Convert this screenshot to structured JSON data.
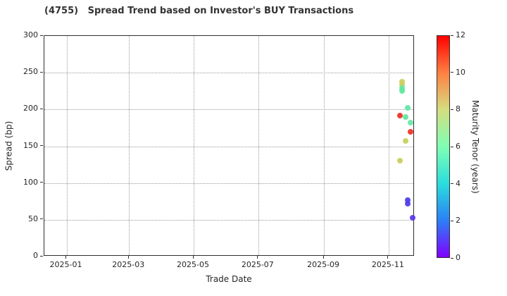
{
  "title": "(4755)   Spread Trend based on Investor's BUY Transactions",
  "chart_data": {
    "type": "scatter",
    "title": "(4755)   Spread Trend based on Investor's BUY Transactions",
    "xlabel": "Trade Date",
    "ylabel": "Spread (bp)",
    "ylim": [
      0,
      300
    ],
    "y_ticks": [
      0,
      50,
      100,
      150,
      200,
      250,
      300
    ],
    "x_ticks": [
      "2025-01",
      "2025-03",
      "2025-05",
      "2025-07",
      "2025-09",
      "2025-11"
    ],
    "x_range": [
      "2024-12-11",
      "2025-11-27"
    ],
    "grid": "dotted",
    "legend_position": "none",
    "colorbar": {
      "label": "Maturity Tenor (years)",
      "min": 0,
      "max": 12,
      "ticks": [
        0,
        2,
        4,
        6,
        8,
        10,
        12
      ],
      "colormap": "rainbow",
      "stops": [
        "#8000ff",
        "#2b80f6",
        "#2bdddd",
        "#80ffb4",
        "#d5dd80",
        "#ff8042",
        "#ff0000"
      ]
    },
    "points": [
      {
        "date": "2025-11-14",
        "spread_bp": 238,
        "tenor_years": 7.5,
        "color": "#cbce60"
      },
      {
        "date": "2025-11-14",
        "spread_bp": 234,
        "tenor_years": 7.5,
        "color": "#cbce60"
      },
      {
        "date": "2025-11-14",
        "spread_bp": 229,
        "tenor_years": 5.0,
        "color": "#5fe79e"
      },
      {
        "date": "2025-11-14",
        "spread_bp": 225,
        "tenor_years": 5.0,
        "color": "#5fe79e"
      },
      {
        "date": "2025-11-19",
        "spread_bp": 202,
        "tenor_years": 5.0,
        "color": "#5be8a6"
      },
      {
        "date": "2025-11-12",
        "spread_bp": 192,
        "tenor_years": 12.0,
        "color": "#ee3123"
      },
      {
        "date": "2025-11-17",
        "spread_bp": 190,
        "tenor_years": 5.0,
        "color": "#5fe79e"
      },
      {
        "date": "2025-11-22",
        "spread_bp": 182,
        "tenor_years": 5.5,
        "color": "#68e7a8"
      },
      {
        "date": "2025-11-22",
        "spread_bp": 170,
        "tenor_years": 12.0,
        "color": "#ee3123"
      },
      {
        "date": "2025-11-17",
        "spread_bp": 157,
        "tenor_years": 7.0,
        "color": "#c6d05e"
      },
      {
        "date": "2025-11-12",
        "spread_bp": 130,
        "tenor_years": 7.5,
        "color": "#c9cc5e"
      },
      {
        "date": "2025-11-19",
        "spread_bp": 77,
        "tenor_years": 1.0,
        "color": "#4e3ce5"
      },
      {
        "date": "2025-11-19",
        "spread_bp": 72,
        "tenor_years": 1.0,
        "color": "#4e3ce5"
      },
      {
        "date": "2025-11-24",
        "spread_bp": 53,
        "tenor_years": 0.6,
        "color": "#5936f0"
      }
    ]
  }
}
